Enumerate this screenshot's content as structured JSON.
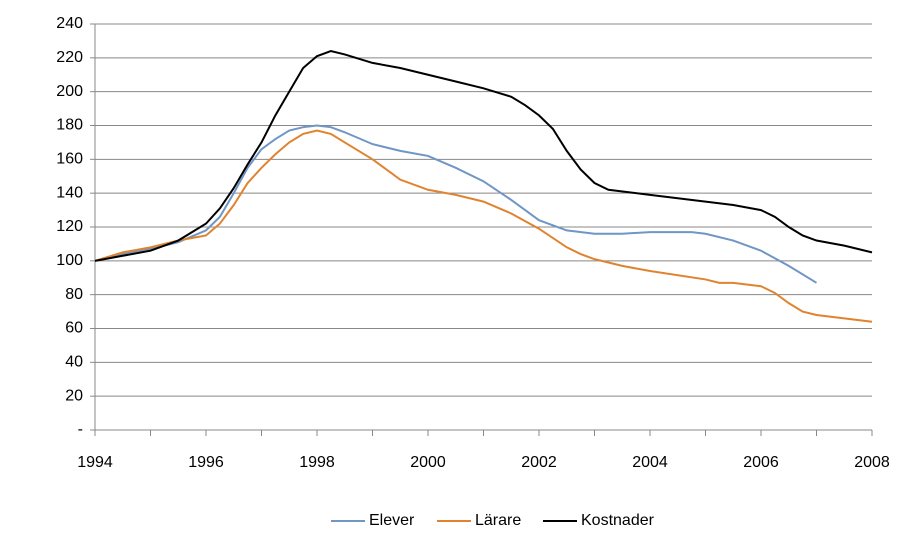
{
  "chart_data": {
    "type": "line",
    "xlim": [
      1994,
      2008
    ],
    "xticks": [
      1994,
      1996,
      1998,
      2000,
      2002,
      2004,
      2006,
      2008
    ],
    "ylim": [
      0,
      240
    ],
    "yticks": [
      {
        "value": 0,
        "label": "-"
      },
      20,
      40,
      60,
      80,
      100,
      120,
      140,
      160,
      180,
      200,
      220,
      240
    ],
    "grid": true,
    "legend": "bottom",
    "series": [
      {
        "name": "Elever",
        "color": "#6f96c4",
        "x": [
          1994,
          1994.5,
          1995,
          1995.5,
          1996,
          1996.25,
          1996.5,
          1996.75,
          1997,
          1997.25,
          1997.5,
          1997.75,
          1998,
          1998.25,
          1998.5,
          1999,
          1999.5,
          2000,
          2000.5,
          2001,
          2001.5,
          2001.75,
          2002,
          2002.5,
          2003,
          2003.5,
          2004,
          2004.75,
          2005,
          2005.5,
          2006,
          2006.5,
          2007
        ],
        "values": [
          100,
          104,
          107,
          111,
          118,
          126,
          140,
          155,
          166,
          172,
          177,
          179,
          180,
          179,
          176,
          169,
          165,
          162,
          155,
          147,
          136,
          130,
          124,
          118,
          116,
          116,
          117,
          117,
          116,
          112,
          106,
          97,
          87
        ]
      },
      {
        "name": "Lärare",
        "color": "#e0832f",
        "x": [
          1994,
          1994.5,
          1995,
          1995.5,
          1996,
          1996.25,
          1996.5,
          1996.75,
          1997,
          1997.25,
          1997.5,
          1997.75,
          1998,
          1998.25,
          1998.5,
          1999,
          1999.5,
          2000,
          2000.5,
          2001,
          2001.5,
          2002,
          2002.5,
          2002.75,
          2003,
          2003.5,
          2004,
          2005,
          2005.25,
          2005.5,
          2006,
          2006.25,
          2006.5,
          2006.75,
          2007,
          2007.5,
          2008
        ],
        "values": [
          100,
          105,
          108,
          112,
          115,
          122,
          133,
          146,
          155,
          163,
          170,
          175,
          177,
          175,
          170,
          160,
          148,
          142,
          139,
          135,
          128,
          119,
          108,
          104,
          101,
          97,
          94,
          89,
          87,
          87,
          85,
          81,
          75,
          70,
          68,
          66,
          64
        ]
      },
      {
        "name": "Kostnader",
        "color": "#000000",
        "x": [
          1994,
          1994.5,
          1995,
          1995.5,
          1996,
          1996.25,
          1996.5,
          1996.75,
          1997,
          1997.25,
          1997.5,
          1997.75,
          1998,
          1998.25,
          1998.5,
          1999,
          1999.5,
          2000,
          2000.5,
          2001,
          2001.5,
          2001.75,
          2002,
          2002.25,
          2002.5,
          2002.75,
          2003,
          2003.25,
          2004,
          2004.5,
          2005,
          2005.5,
          2006,
          2006.25,
          2006.5,
          2006.75,
          2007,
          2007.5,
          2008
        ],
        "values": [
          100,
          103,
          106,
          112,
          122,
          131,
          143,
          157,
          170,
          186,
          200,
          214,
          221,
          224,
          222,
          217,
          214,
          210,
          206,
          202,
          197,
          192,
          186,
          178,
          165,
          154,
          146,
          142,
          139,
          137,
          135,
          133,
          130,
          126,
          120,
          115,
          112,
          109,
          105
        ]
      }
    ]
  }
}
